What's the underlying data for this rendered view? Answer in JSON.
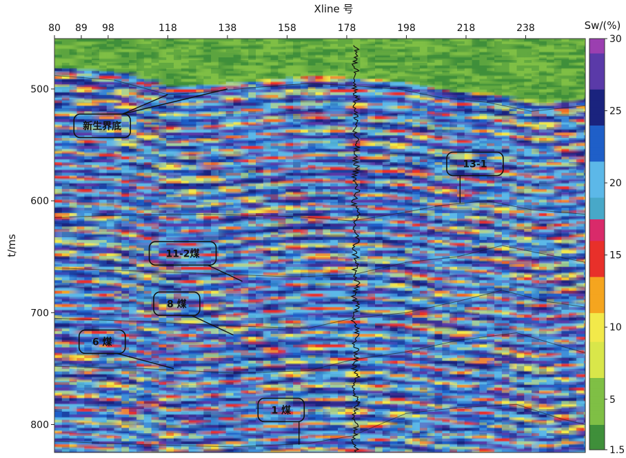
{
  "chart_data": {
    "type": "heatmap",
    "title": "",
    "xlabel": "Xline 号",
    "ylabel": "t/ms",
    "xlim": [
      80,
      258
    ],
    "ylim": [
      455,
      825
    ],
    "x_ticks": [
      80,
      89,
      98,
      118,
      138,
      158,
      178,
      198,
      218,
      238
    ],
    "y_ticks": [
      500,
      600,
      700,
      800
    ],
    "colorbar": {
      "label": "Sw/(%)",
      "ticks": [
        "1.5",
        "5",
        "10",
        "15",
        "20",
        "25",
        "30"
      ],
      "stops": [
        {
          "value": 1.5,
          "color": "#3f8f3a"
        },
        {
          "value": 5,
          "color": "#7fbf45"
        },
        {
          "value": 8,
          "color": "#d9e64a"
        },
        {
          "value": 10,
          "color": "#f2e94a"
        },
        {
          "value": 12,
          "color": "#f5a51f"
        },
        {
          "value": 15,
          "color": "#e8302a"
        },
        {
          "value": 17,
          "color": "#d92a6a"
        },
        {
          "value": 18,
          "color": "#48a8c8"
        },
        {
          "value": 20,
          "color": "#5cb8e8"
        },
        {
          "value": 23,
          "color": "#1f5fc8"
        },
        {
          "value": 25,
          "color": "#1a237e"
        },
        {
          "value": 28,
          "color": "#5a3aa8"
        },
        {
          "value": 30,
          "color": "#9b3fb0"
        }
      ]
    },
    "horizons": [
      {
        "name": "新生界底",
        "points": [
          [
            80,
            488
          ],
          [
            100,
            492
          ],
          [
            118,
            505
          ],
          [
            130,
            503
          ],
          [
            150,
            498
          ],
          [
            165,
            495
          ],
          [
            180,
            497
          ],
          [
            195,
            500
          ],
          [
            210,
            508
          ],
          [
            225,
            512
          ],
          [
            240,
            520
          ],
          [
            258,
            515
          ]
        ]
      },
      {
        "name": "13-1",
        "points": [
          [
            80,
            615
          ],
          [
            100,
            613
          ],
          [
            130,
            612
          ],
          [
            160,
            614
          ],
          [
            180,
            618
          ],
          [
            198,
            610
          ],
          [
            210,
            604
          ],
          [
            225,
            600
          ],
          [
            240,
            608
          ],
          [
            258,
            612
          ]
        ]
      },
      {
        "name": "11-2煤",
        "points": [
          [
            80,
            660
          ],
          [
            100,
            662
          ],
          [
            130,
            665
          ],
          [
            160,
            668
          ],
          [
            180,
            666
          ],
          [
            198,
            655
          ],
          [
            215,
            650
          ],
          [
            230,
            640
          ],
          [
            245,
            648
          ],
          [
            258,
            655
          ]
        ]
      },
      {
        "name": "8煤",
        "points": [
          [
            80,
            705
          ],
          [
            110,
            708
          ],
          [
            140,
            712
          ],
          [
            165,
            714
          ],
          [
            180,
            705
          ],
          [
            198,
            700
          ],
          [
            215,
            690
          ],
          [
            230,
            680
          ],
          [
            245,
            690
          ],
          [
            258,
            695
          ]
        ]
      },
      {
        "name": "6煤",
        "points": [
          [
            80,
            748
          ],
          [
            110,
            750
          ],
          [
            140,
            754
          ],
          [
            165,
            752
          ],
          [
            180,
            742
          ],
          [
            198,
            735
          ],
          [
            215,
            725
          ],
          [
            235,
            718
          ],
          [
            250,
            730
          ],
          [
            258,
            736
          ]
        ]
      },
      {
        "name": "1煤",
        "points": [
          [
            80,
            815
          ],
          [
            110,
            818
          ],
          [
            140,
            820
          ],
          [
            165,
            817
          ],
          [
            180,
            810
          ],
          [
            198,
            790
          ],
          [
            215,
            785
          ],
          [
            235,
            782
          ],
          [
            250,
            795
          ],
          [
            258,
            800
          ]
        ]
      }
    ],
    "well_log": {
      "xline": 181
    },
    "annotations": [
      {
        "text": "新生界底",
        "box_x": 96,
        "box_y": 533,
        "arrow_to": [
          [
            118,
            505
          ],
          [
            138,
            500
          ]
        ]
      },
      {
        "text": "13-1",
        "box_x": 221,
        "box_y": 567,
        "arrow_to": [
          [
            216,
            602
          ]
        ]
      },
      {
        "text": "11-2煤",
        "box_x": 123,
        "box_y": 647,
        "arrow_to": [
          [
            143,
            672
          ]
        ]
      },
      {
        "text": "8 煤",
        "box_x": 121,
        "box_y": 692,
        "arrow_to": [
          [
            140,
            720
          ]
        ]
      },
      {
        "text": "6 煤",
        "box_x": 96,
        "box_y": 726,
        "arrow_to": [
          [
            120,
            750
          ]
        ]
      },
      {
        "text": "1 煤",
        "box_x": 156,
        "box_y": 787,
        "arrow_to": [
          [
            162,
            818
          ]
        ]
      }
    ],
    "grid": false,
    "legend": "right colorbar"
  }
}
